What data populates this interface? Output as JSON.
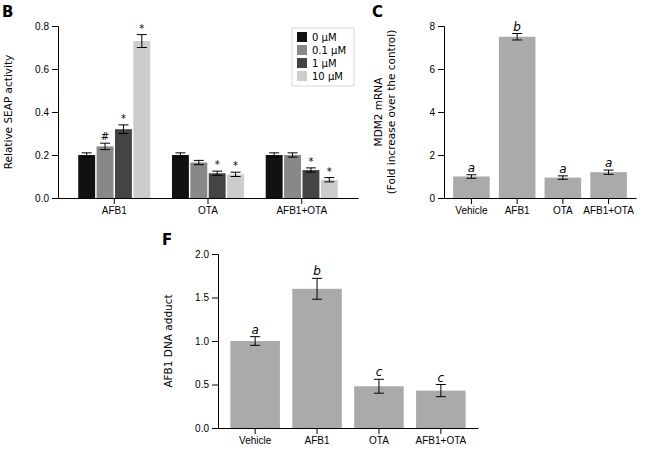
{
  "chart_data": [
    {
      "type": "bar",
      "title": "B",
      "categories": [
        "AFB1",
        "OTA",
        "AFB1+OTA"
      ],
      "series": [
        {
          "name": "0 μM",
          "color": "#111111",
          "values": [
            0.2,
            0.2,
            0.2
          ],
          "errors": [
            0.01,
            0.01,
            0.01
          ]
        },
        {
          "name": "0.1 μM",
          "color": "#888888",
          "values": [
            0.24,
            0.165,
            0.2
          ],
          "errors": [
            0.015,
            0.01,
            0.01
          ],
          "annotations": [
            "#",
            null,
            null
          ]
        },
        {
          "name": "1 μM",
          "color": "#444444",
          "values": [
            0.32,
            0.115,
            0.13
          ],
          "errors": [
            0.02,
            0.01,
            0.01
          ],
          "annotations": [
            "*",
            "*",
            "*"
          ]
        },
        {
          "name": "10 μM",
          "color": "#cccccc",
          "values": [
            0.73,
            0.11,
            0.085
          ],
          "errors": [
            0.03,
            0.01,
            0.01
          ],
          "annotations": [
            "*",
            "*",
            "*"
          ]
        }
      ],
      "ylabel": "Relative SEAP activity",
      "ylim": [
        0.0,
        0.8
      ],
      "yticks": [
        {
          "value": 0,
          "label": "0.0"
        },
        0.2,
        0.4,
        0.6,
        0.8
      ],
      "legend": "upper right"
    },
    {
      "type": "bar",
      "title": "C",
      "categories": [
        "Vehicle",
        "AFB1",
        "OTA",
        "AFB1+OTA"
      ],
      "values": [
        1.0,
        7.5,
        0.95,
        1.2
      ],
      "errors": [
        0.08,
        0.15,
        0.08,
        0.1
      ],
      "color": "#aaaaaa",
      "annotations": [
        "a",
        "b",
        "a",
        "a"
      ],
      "ylabel": [
        "MDM2 mRNA",
        "(Fold increase over the control)"
      ],
      "ylim": [
        0,
        8
      ],
      "yticks": [
        0,
        2,
        4,
        6,
        8
      ]
    },
    {
      "type": "bar",
      "title": "F",
      "categories": [
        "Vehicle",
        "AFB1",
        "OTA",
        "AFB1+OTA"
      ],
      "values": [
        1.0,
        1.6,
        0.48,
        0.43
      ],
      "errors": [
        0.05,
        0.12,
        0.08,
        0.07
      ],
      "color": "#aaaaaa",
      "annotations": [
        "a",
        "b",
        "c",
        "c"
      ],
      "ylabel": "AFB1 DNA adduct",
      "ylim": [
        0.0,
        2.0
      ],
      "yticks": [
        {
          "value": 0,
          "label": "0.0"
        },
        0.5,
        {
          "value": 1,
          "label": "1.0"
        },
        1.5,
        {
          "value": 2,
          "label": "2.0"
        }
      ]
    }
  ]
}
